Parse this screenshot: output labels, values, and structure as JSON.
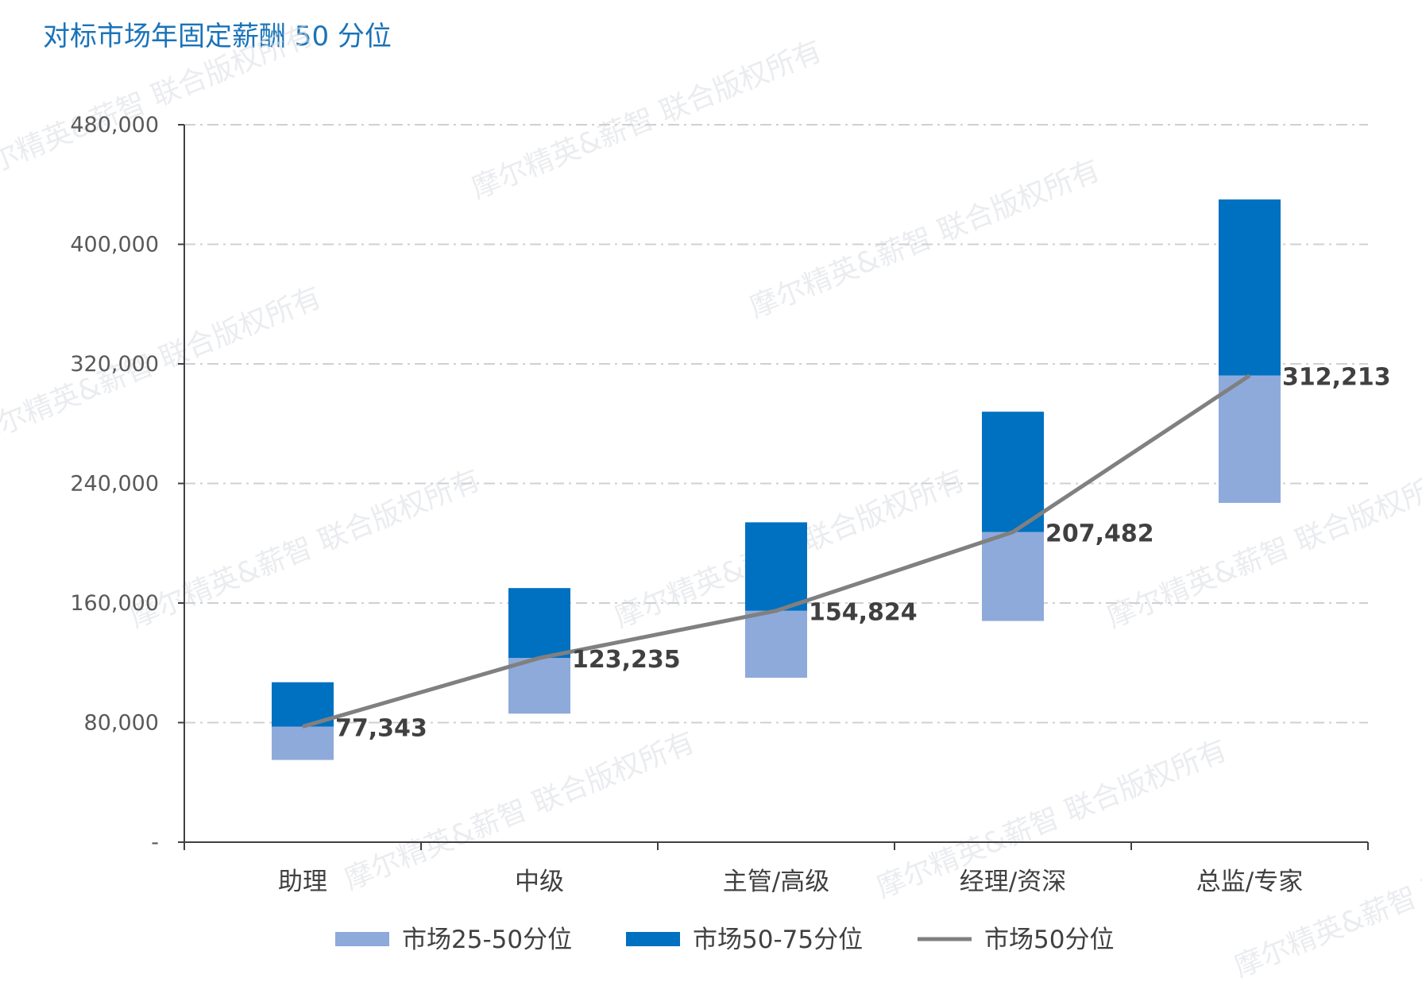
{
  "chart_data": {
    "type": "bar",
    "subtype": "stacked-range-bar-with-line",
    "title": "对标市场年固定薪酬 50 分位",
    "categories": [
      "助理",
      "中级",
      "主管/高级",
      "经理/资深",
      "总监/专家"
    ],
    "series": [
      {
        "name": "市场25-50分位",
        "kind": "bar",
        "color": "#8eaadb",
        "low": [
          55000,
          86000,
          110000,
          148000,
          227000
        ],
        "high": [
          77343,
          123235,
          154824,
          207482,
          312213
        ]
      },
      {
        "name": "市场50-75分位",
        "kind": "bar",
        "color": "#0070c0",
        "low": [
          77343,
          123235,
          154824,
          207482,
          312213
        ],
        "high": [
          107000,
          170000,
          214000,
          288000,
          430000
        ]
      },
      {
        "name": "市场50分位",
        "kind": "line",
        "color": "#808080",
        "values": [
          77343,
          123235,
          154824,
          207482,
          312213
        ]
      }
    ],
    "data_labels": [
      "77,343",
      "123,235",
      "154,824",
      "207,482",
      "312,213"
    ],
    "y_ticks": [
      0,
      80000,
      160000,
      240000,
      320000,
      400000,
      480000
    ],
    "y_tick_labels": [
      "-",
      "80,000",
      "160,000",
      "240,000",
      "320,000",
      "400,000",
      "480,000"
    ],
    "ylim": [
      0,
      480000
    ],
    "grid": true,
    "legend_position": "bottom"
  },
  "watermark": "摩尔精英&薪智 联合版权所有"
}
